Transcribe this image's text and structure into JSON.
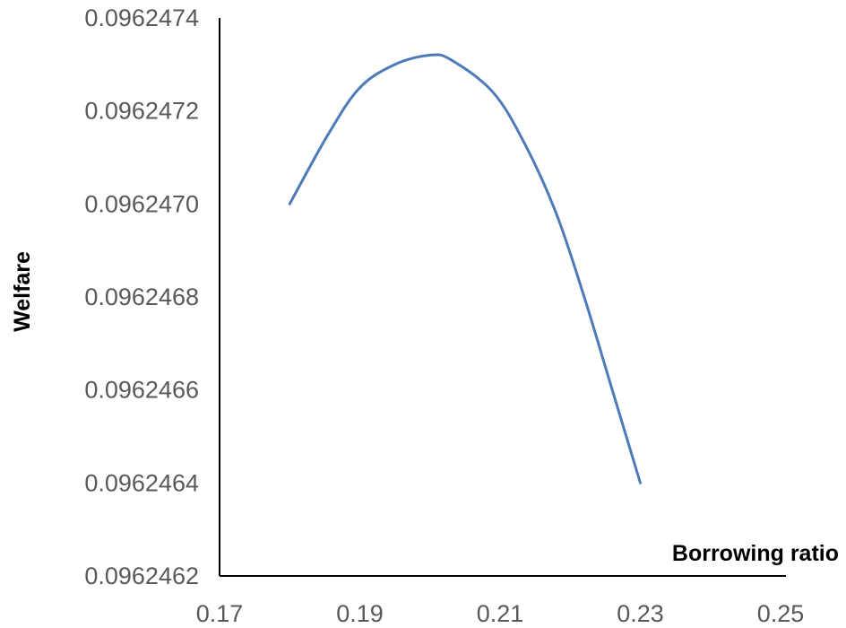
{
  "chart_data": {
    "type": "line",
    "title": "",
    "xlabel": "Borrowing ratio",
    "ylabel": "Welfare",
    "xlim": [
      0.17,
      0.25
    ],
    "ylim": [
      0.0962462,
      0.0962474
    ],
    "x_ticks": [
      "0.17",
      "0.19",
      "0.21",
      "0.23",
      "0.25"
    ],
    "y_ticks": [
      "0.0962462",
      "0.0962464",
      "0.0962466",
      "0.0962468",
      "0.0962470",
      "0.0962472",
      "0.0962474"
    ],
    "grid": false,
    "legend": "none",
    "series": [
      {
        "color": "#4f7ab8",
        "x": [
          0.18,
          0.1855,
          0.19,
          0.195,
          0.2,
          0.203,
          0.209,
          0.2135,
          0.218,
          0.222,
          0.226,
          0.23
        ],
        "y": [
          0.096247,
          0.09624715,
          0.09624725,
          0.0962473,
          0.09624732,
          0.09624731,
          0.09624724,
          0.09624713,
          0.09624698,
          0.0962468,
          0.0962466,
          0.0962464
        ]
      }
    ]
  }
}
